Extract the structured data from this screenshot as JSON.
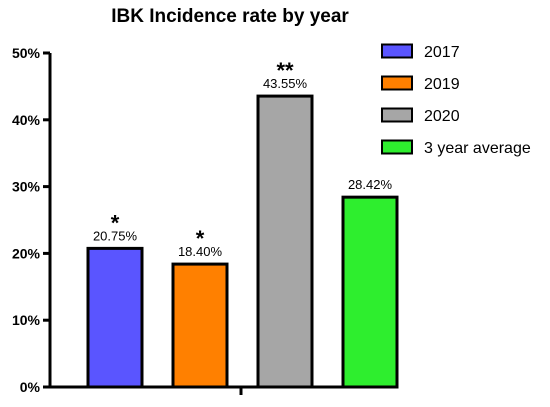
{
  "chart_data": {
    "type": "bar",
    "title": "IBK Incidence rate by year",
    "xlabel": "",
    "ylabel": "",
    "categories": [
      "2017",
      "2019",
      "2020",
      "3 year average"
    ],
    "values": [
      20.75,
      18.4,
      43.55,
      28.42
    ],
    "data_labels": [
      "20.75%",
      "18.40%",
      "43.55%",
      "28.42%"
    ],
    "significance": [
      "*",
      "*",
      "**",
      ""
    ],
    "colors": [
      "#5a55ff",
      "#ff8000",
      "#a6a6a6",
      "#2eee2e"
    ],
    "ylim": [
      0,
      50
    ],
    "yticks": [
      0,
      10,
      20,
      30,
      40,
      50
    ],
    "ytick_labels": [
      "0%",
      "10%",
      "20%",
      "30%",
      "40%",
      "50%"
    ],
    "grid": false,
    "legend": {
      "placement": "top-right",
      "entries": [
        "2017",
        "2019",
        "2020",
        "3 year average"
      ]
    }
  }
}
